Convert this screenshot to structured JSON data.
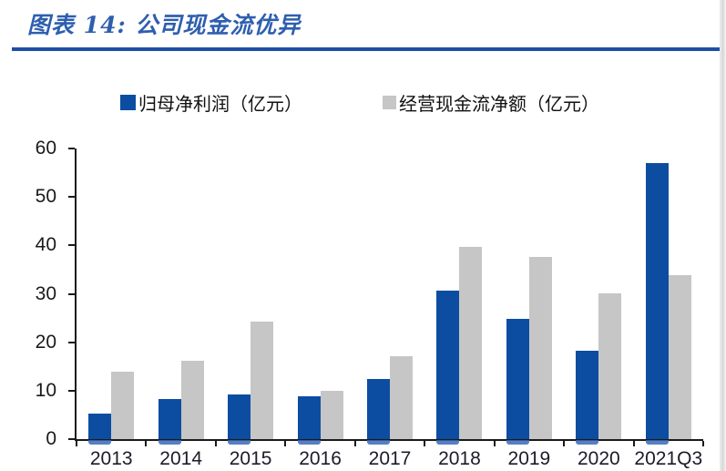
{
  "page": {
    "title": "图表 14: 公司现金流优异"
  },
  "colors": {
    "title_blue": "#2e5fae",
    "rule_blue": "#1e4fa3",
    "bar_blue": "#0d4da1",
    "bar_blue_shadow": "#3a69b6",
    "bar_gray": "#c6c6c6",
    "axis_black": "#1a1a1a"
  },
  "chart_data": {
    "type": "bar",
    "title": "图表 14: 公司现金流优异",
    "categories": [
      "2013",
      "2014",
      "2015",
      "2016",
      "2017",
      "2018",
      "2019",
      "2020",
      "2021Q3"
    ],
    "series": [
      {
        "name": "归母净利润（亿元）",
        "color": "#0d4da1",
        "values": [
          5.2,
          8.3,
          9.3,
          8.9,
          12.5,
          30.6,
          24.9,
          18.3,
          56.9
        ]
      },
      {
        "name": "经营现金流净额（亿元）",
        "color": "#c6c6c6",
        "values": [
          13.9,
          16.1,
          24.2,
          10.0,
          17.1,
          39.6,
          37.6,
          30.1,
          33.9
        ]
      }
    ],
    "xlabel": "",
    "ylabel": "",
    "ylim": [
      0,
      60
    ],
    "ytick_step": 10,
    "grid": false,
    "legend_position": "top-center"
  }
}
